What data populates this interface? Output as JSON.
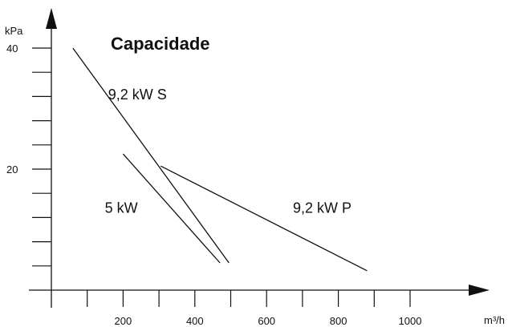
{
  "chart_data": {
    "type": "line",
    "title": "Capacidade",
    "xlabel": "m³/h",
    "ylabel": "kPa",
    "xlim": [
      0,
      1050
    ],
    "ylim": [
      0,
      45
    ],
    "x_ticks": [
      100,
      200,
      300,
      400,
      500,
      600,
      700,
      800,
      900,
      1000
    ],
    "x_tick_labels": [
      {
        "x": 200,
        "label": "200"
      },
      {
        "x": 400,
        "label": "400"
      },
      {
        "x": 600,
        "label": "600"
      },
      {
        "x": 800,
        "label": "800"
      },
      {
        "x": 1000,
        "label": "1000"
      }
    ],
    "y_ticks": [
      4,
      8,
      12,
      16,
      20,
      24,
      28,
      32,
      36,
      40
    ],
    "y_tick_labels": [
      {
        "y": 20,
        "label": "20"
      },
      {
        "y": 40,
        "label": "40"
      }
    ],
    "grid": false,
    "legend": "none",
    "color": "#111111",
    "series": [
      {
        "name": "9,2 kW S",
        "label_pos": {
          "x": 240,
          "y": 31.5
        },
        "points": [
          [
            60,
            40
          ],
          [
            495,
            4.5
          ]
        ]
      },
      {
        "name": "5 kW",
        "label_pos": {
          "x": 195,
          "y": 12.8
        },
        "points": [
          [
            200,
            22.5
          ],
          [
            470,
            4.5
          ]
        ]
      },
      {
        "name": "9,2 kW P",
        "label_pos": {
          "x": 755,
          "y": 12.8
        },
        "points": [
          [
            305,
            20.5
          ],
          [
            880,
            3.2
          ]
        ]
      }
    ]
  }
}
